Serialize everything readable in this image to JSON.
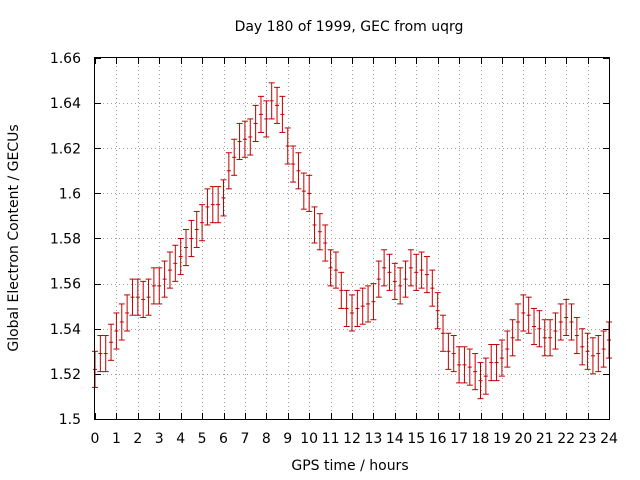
{
  "chart_data": {
    "type": "errorbar",
    "title": "Day 180 of 1999, GEC from uqrg",
    "xlabel": "GPS time / hours",
    "ylabel": "Global Electron Content / GECUs",
    "xlim": [
      0,
      24
    ],
    "ylim": [
      1.5,
      1.66
    ],
    "xticks": [
      "0",
      "1",
      "2",
      "3",
      "4",
      "5",
      "6",
      "7",
      "8",
      "9",
      "10",
      "11",
      "12",
      "13",
      "14",
      "15",
      "16",
      "17",
      "18",
      "19",
      "20",
      "21",
      "22",
      "23",
      "24"
    ],
    "yticks": [
      "1.5",
      "1.52",
      "1.54",
      "1.56",
      "1.58",
      "1.6",
      "1.62",
      "1.64",
      "1.66"
    ],
    "grid": true,
    "series_color": "#c00000",
    "error": 0.008,
    "x": [
      0.0,
      0.25,
      0.5,
      0.75,
      1.0,
      1.25,
      1.5,
      1.75,
      2.0,
      2.25,
      2.5,
      2.75,
      3.0,
      3.25,
      3.5,
      3.75,
      4.0,
      4.25,
      4.5,
      4.75,
      5.0,
      5.25,
      5.5,
      5.75,
      6.0,
      6.25,
      6.5,
      6.75,
      7.0,
      7.25,
      7.5,
      7.75,
      8.0,
      8.25,
      8.5,
      8.75,
      9.0,
      9.25,
      9.5,
      9.75,
      10.0,
      10.25,
      10.5,
      10.75,
      11.0,
      11.25,
      11.5,
      11.75,
      12.0,
      12.25,
      12.5,
      12.75,
      13.0,
      13.25,
      13.5,
      13.75,
      14.0,
      14.25,
      14.5,
      14.75,
      15.0,
      15.25,
      15.5,
      15.75,
      16.0,
      16.25,
      16.5,
      16.75,
      17.0,
      17.25,
      17.5,
      17.75,
      18.0,
      18.25,
      18.5,
      18.75,
      19.0,
      19.25,
      19.5,
      19.75,
      20.0,
      20.25,
      20.5,
      20.75,
      21.0,
      21.25,
      21.5,
      21.75,
      22.0,
      22.25,
      22.5,
      22.75,
      23.0,
      23.25,
      23.5,
      23.75,
      24.0
    ],
    "y": [
      1.522,
      1.529,
      1.529,
      1.534,
      1.539,
      1.543,
      1.547,
      1.554,
      1.554,
      1.553,
      1.554,
      1.559,
      1.559,
      1.562,
      1.566,
      1.569,
      1.572,
      1.576,
      1.58,
      1.584,
      1.587,
      1.594,
      1.595,
      1.595,
      1.598,
      1.61,
      1.616,
      1.623,
      1.624,
      1.625,
      1.631,
      1.635,
      1.633,
      1.641,
      1.639,
      1.635,
      1.621,
      1.613,
      1.61,
      1.601,
      1.6,
      1.586,
      1.583,
      1.578,
      1.567,
      1.566,
      1.557,
      1.549,
      1.547,
      1.549,
      1.55,
      1.551,
      1.552,
      1.562,
      1.567,
      1.565,
      1.561,
      1.559,
      1.562,
      1.567,
      1.565,
      1.566,
      1.564,
      1.558,
      1.548,
      1.538,
      1.53,
      1.529,
      1.524,
      1.524,
      1.523,
      1.521,
      1.517,
      1.519,
      1.525,
      1.525,
      1.527,
      1.531,
      1.536,
      1.543,
      1.547,
      1.546,
      1.541,
      1.54,
      1.536,
      1.536,
      1.539,
      1.543,
      1.545,
      1.543,
      1.537,
      1.532,
      1.53,
      1.528,
      1.529,
      1.531,
      1.535
    ]
  }
}
